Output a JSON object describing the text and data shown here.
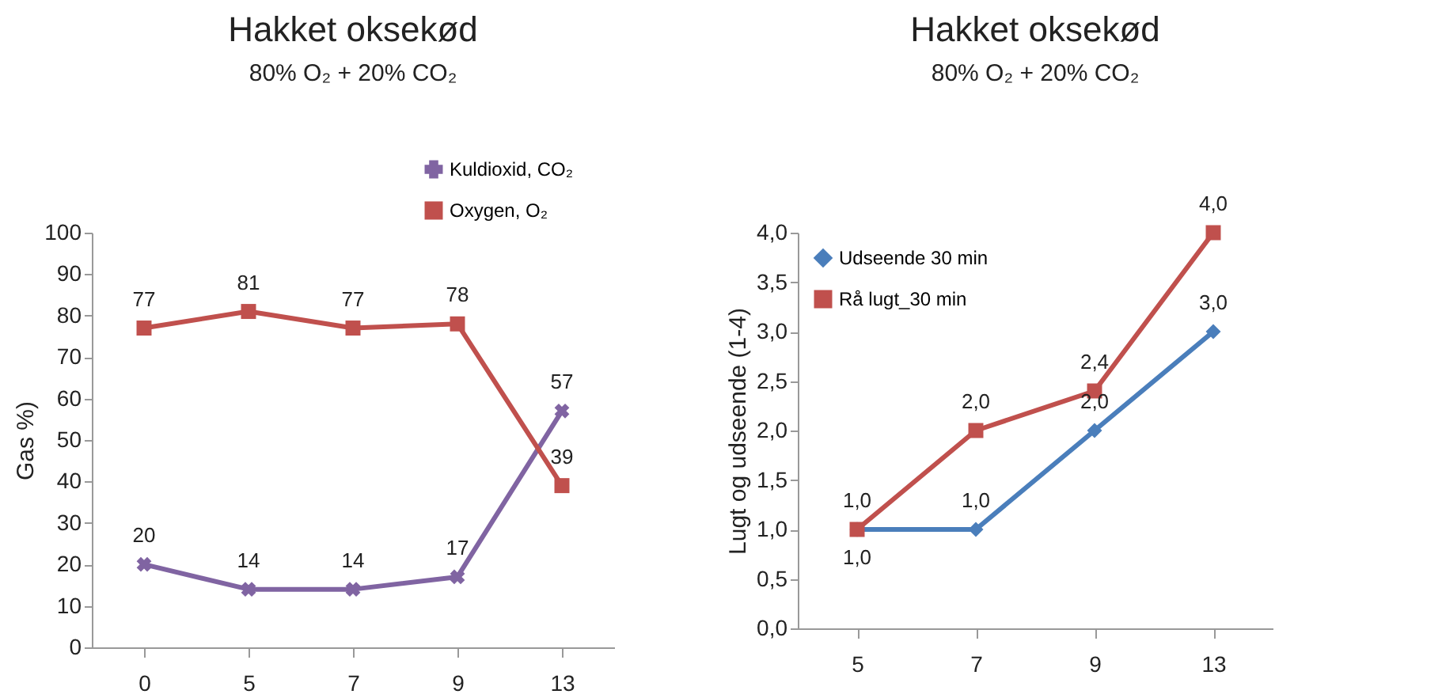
{
  "chart_data": [
    {
      "type": "line",
      "title": "Hakket oksekød",
      "subtitle": "80% O₂ + 20% CO₂",
      "ylabel": "Gas %)",
      "categories": [
        "0",
        "5",
        "7",
        "9",
        "13"
      ],
      "series": [
        {
          "name": "Kuldioxid, CO₂",
          "color": "#8064a2",
          "marker": "cross",
          "values": [
            20,
            14,
            14,
            17,
            57
          ]
        },
        {
          "name": "Oxygen, O₂",
          "color": "#c0504d",
          "marker": "square",
          "values": [
            77,
            81,
            77,
            78,
            39
          ]
        }
      ],
      "ylim": [
        0,
        100
      ],
      "yticks": [
        0,
        10,
        20,
        30,
        40,
        50,
        60,
        70,
        80,
        90,
        100
      ],
      "data_labels": true,
      "legend": "top right",
      "grid": false
    },
    {
      "type": "line",
      "title": "Hakket oksekød",
      "subtitle": "80% O₂ + 20% CO₂",
      "ylabel": "Lugt og udseende (1-4)",
      "categories": [
        "5",
        "7",
        "9",
        "13"
      ],
      "series": [
        {
          "name": "Udseende  30 min",
          "color": "#4a7ebb",
          "marker": "diamond",
          "values": [
            1.0,
            1.0,
            2.0,
            3.0
          ],
          "value_labels": [
            "1,0",
            "1,0",
            "2,0",
            "3,0"
          ]
        },
        {
          "name": "Rå lugt_30 min",
          "color": "#c0504d",
          "marker": "square",
          "values": [
            1.0,
            2.0,
            2.4,
            4.0
          ],
          "value_labels": [
            "1,0",
            "2,0",
            "2,4",
            "4,0"
          ]
        }
      ],
      "ylim": [
        0,
        4
      ],
      "yticks": [
        {
          "value": 0,
          "label": "0,0"
        },
        {
          "value": 0.5,
          "label": "0,5"
        },
        {
          "value": 1,
          "label": "1,0"
        },
        {
          "value": 1.5,
          "label": "1,5"
        },
        {
          "value": 2,
          "label": "2,0"
        },
        {
          "value": 2.5,
          "label": "2,5"
        },
        {
          "value": 3,
          "label": "3,0"
        },
        {
          "value": 3.5,
          "label": "3,5"
        },
        {
          "value": 4,
          "label": "4,0"
        }
      ],
      "legend": "top left",
      "grid": false
    }
  ]
}
